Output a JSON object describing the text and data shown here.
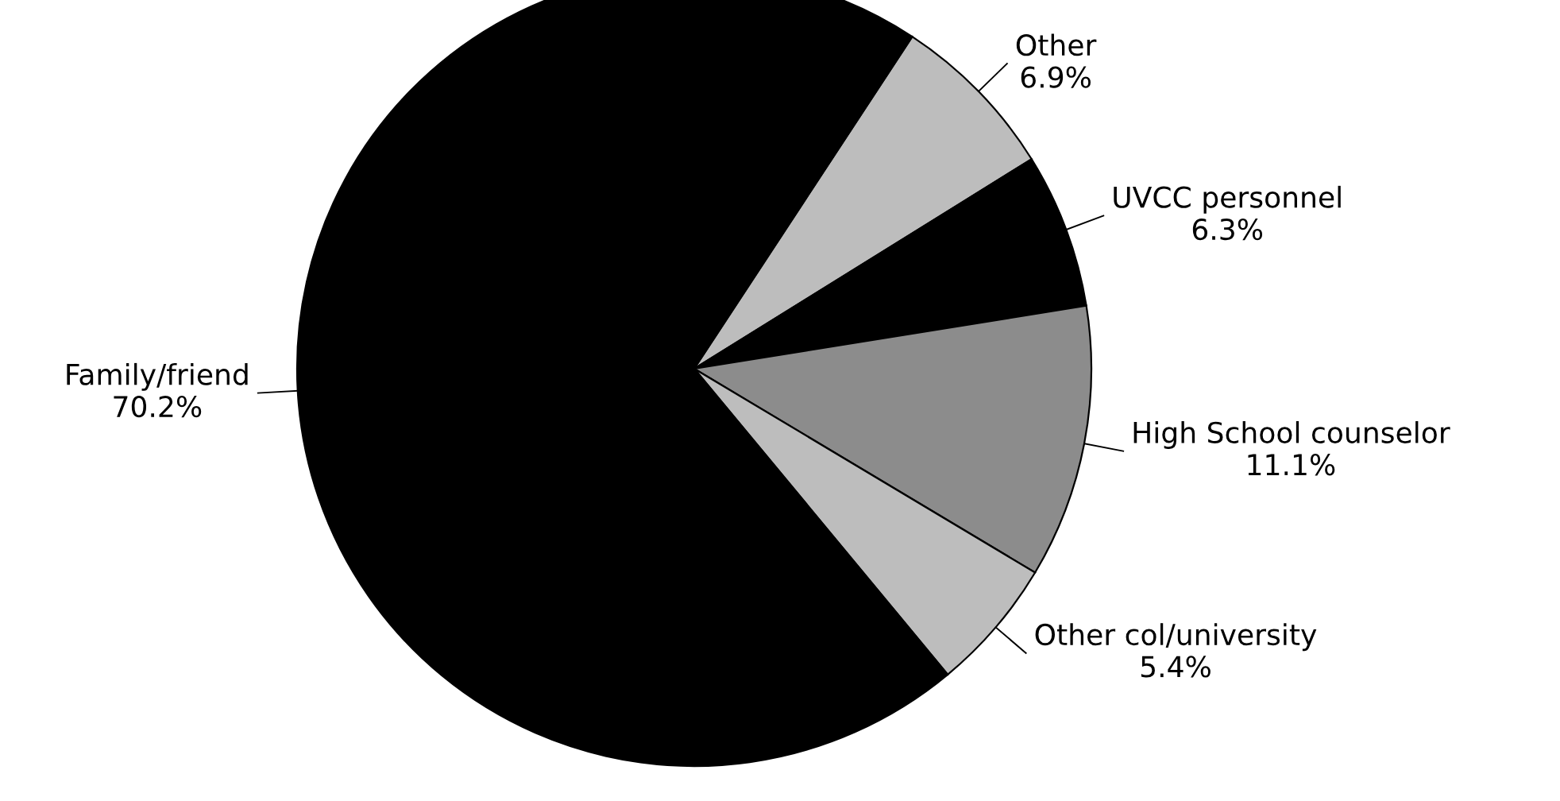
{
  "chart_data": {
    "type": "pie",
    "categories": [
      "Other",
      "UVCC personnel",
      "High School counselor",
      "Other col/university",
      "Family/friend"
    ],
    "values": [
      6.9,
      6.3,
      11.1,
      5.4,
      70.2
    ],
    "value_labels": [
      "6.9%",
      "6.3%",
      "11.1%",
      "5.4%",
      "70.2%"
    ],
    "colors": [
      "#bdbdbd",
      "#000000",
      "#8c8c8c",
      "#bdbdbd",
      "#000000"
    ],
    "legend": false
  }
}
